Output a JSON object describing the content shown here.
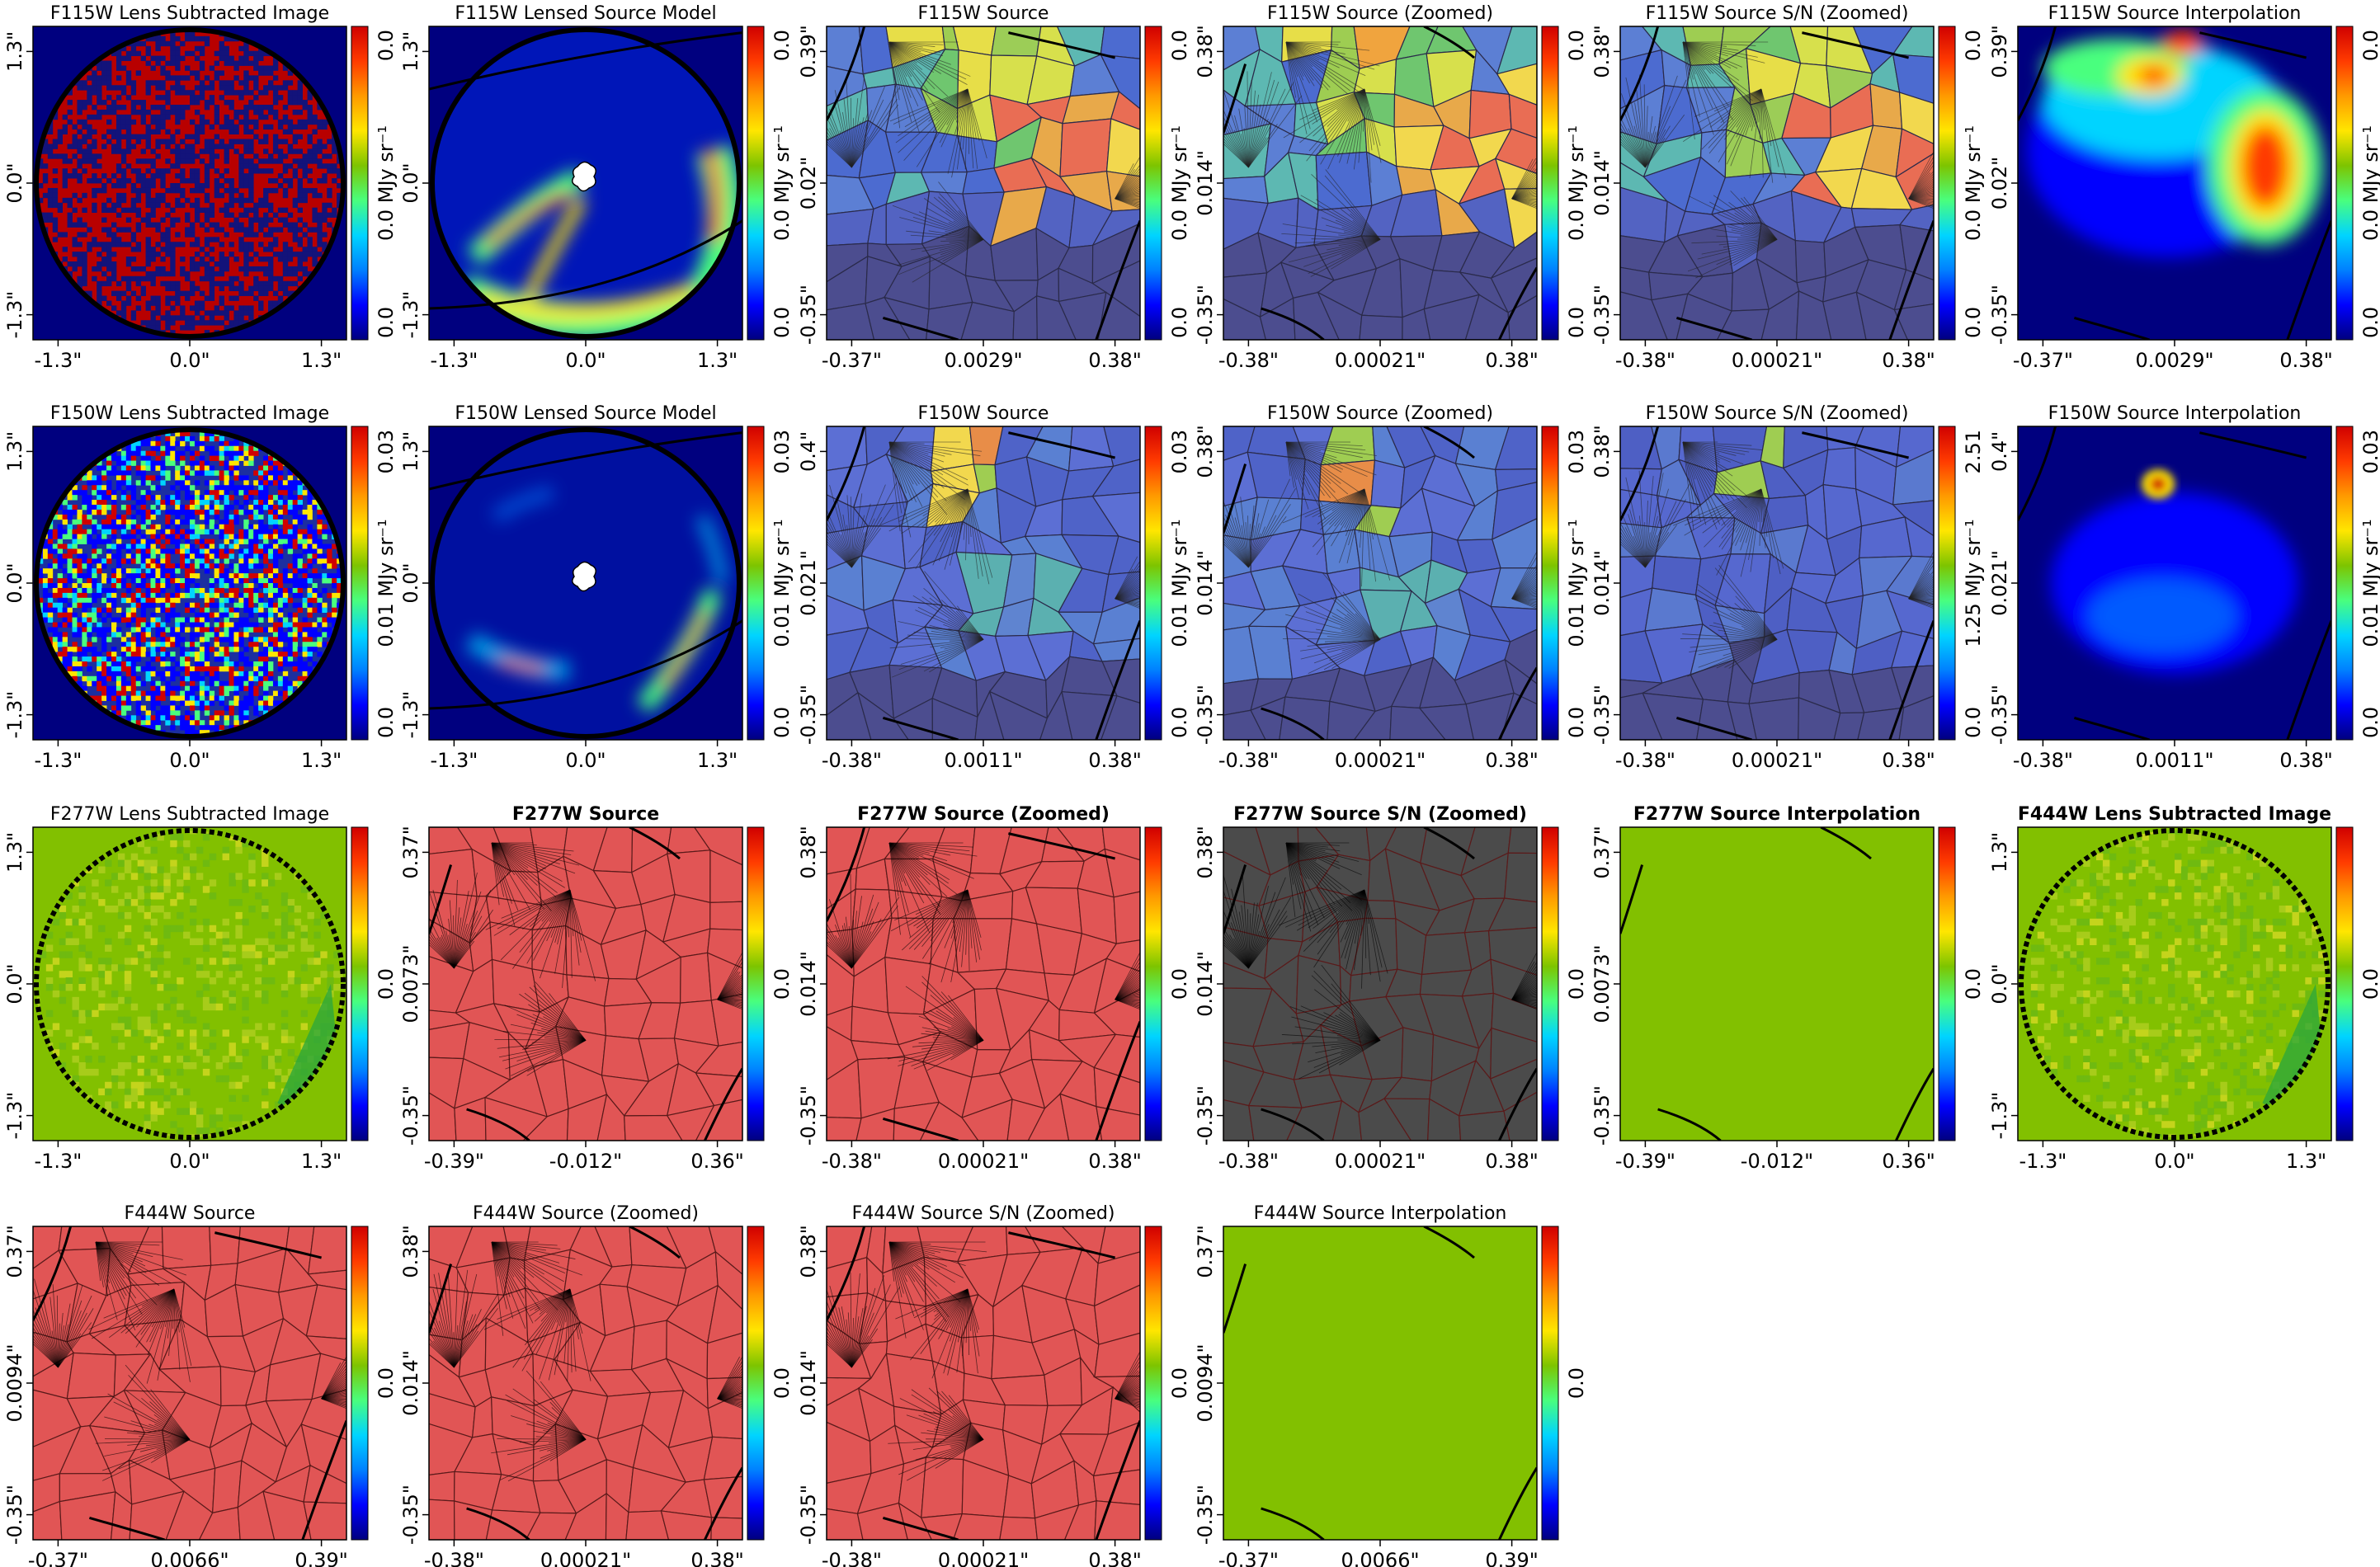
{
  "figure": {
    "layout": {
      "rows": 4,
      "cols": 6
    },
    "colors": {
      "cmap": [
        "#00007f",
        "#0000ff",
        "#0080ff",
        "#00d4ff",
        "#49ff7e",
        "#7dc400",
        "#ffe600",
        "#ff9a00",
        "#ff3b00",
        "#d00000"
      ],
      "recon_red": "#e15555",
      "flat_green": "#82c000",
      "sn_gray": "#4b4b4b",
      "mask_ring": "#000000"
    }
  },
  "chart_data": [
    {
      "type": "heatmap",
      "title": "F115W Lens Subtracted Image",
      "bold": false,
      "style": "noise_redblue",
      "xticks": [
        "-1.3\"",
        "0.0\"",
        "1.3\""
      ],
      "yticks": [
        "1.3\"",
        "0.0\"",
        "-1.3\""
      ],
      "cbar": {
        "ticks": [
          "0.0",
          "0.0"
        ],
        "label": "0.0 MJy sr⁻¹"
      }
    },
    {
      "type": "heatmap",
      "title": "F115W Lensed Source Model",
      "bold": false,
      "style": "lensed_arcs_a",
      "xticks": [
        "-1.3\"",
        "0.0\"",
        "1.3\""
      ],
      "yticks": [
        "1.3\"",
        "0.0\"",
        "-1.3\""
      ],
      "cbar": {
        "ticks": [
          "0.0",
          "0.0"
        ],
        "label": "0.0 MJy sr⁻¹"
      }
    },
    {
      "type": "heatmap",
      "title": "F115W Source",
      "bold": false,
      "style": "voronoi_color_a",
      "xticks": [
        "-0.37\"",
        "0.0029\"",
        "0.38\""
      ],
      "yticks": [
        "0.39\"",
        "0.02\"",
        "-0.35\""
      ],
      "cbar": {
        "ticks": [
          "0.0",
          "0.0"
        ],
        "label": "0.0 MJy sr⁻¹"
      }
    },
    {
      "type": "heatmap",
      "title": "F115W Source (Zoomed)",
      "bold": false,
      "style": "voronoi_color_a",
      "xticks": [
        "-0.38\"",
        "0.00021\"",
        "0.38\""
      ],
      "yticks": [
        "0.38\"",
        "0.014\"",
        "-0.35\""
      ],
      "cbar": {
        "ticks": [
          "0.0",
          "0.0"
        ],
        "label": "0.0 MJy sr⁻¹"
      }
    },
    {
      "type": "heatmap",
      "title": "F115W Source S/N (Zoomed)",
      "bold": false,
      "style": "voronoi_color_a",
      "xticks": [
        "-0.38\"",
        "0.00021\"",
        "0.38\""
      ],
      "yticks": [
        "0.38\"",
        "0.014\"",
        "-0.35\""
      ],
      "cbar": {
        "ticks": [
          "0.0",
          "0.0"
        ],
        "label": "0.0 MJy sr⁻¹"
      }
    },
    {
      "type": "heatmap",
      "title": "F115W Source Interpolation",
      "bold": false,
      "style": "interp_a",
      "xticks": [
        "-0.37\"",
        "0.0029\"",
        "0.38\""
      ],
      "yticks": [
        "0.39\"",
        "0.02\"",
        "-0.35\""
      ],
      "cbar": {
        "ticks": [
          "0.0",
          "0.0"
        ],
        "label": "0.0 MJy sr⁻¹"
      }
    },
    {
      "type": "heatmap",
      "title": "F150W Lens Subtracted Image",
      "bold": false,
      "style": "noise_multi",
      "xticks": [
        "-1.3\"",
        "0.0\"",
        "1.3\""
      ],
      "yticks": [
        "1.3\"",
        "0.0\"",
        "-1.3\""
      ],
      "cbar": {
        "ticks": [
          "0.0",
          "0.03"
        ],
        "label": "0.01 MJy sr⁻¹"
      }
    },
    {
      "type": "heatmap",
      "title": "F150W Lensed Source Model",
      "bold": false,
      "style": "lensed_arcs_b",
      "xticks": [
        "-1.3\"",
        "0.0\"",
        "1.3\""
      ],
      "yticks": [
        "1.3\"",
        "0.0\"",
        "-1.3\""
      ],
      "cbar": {
        "ticks": [
          "0.0",
          "0.03"
        ],
        "label": "0.01 MJy sr⁻¹"
      }
    },
    {
      "type": "heatmap",
      "title": "F150W Source",
      "bold": false,
      "style": "voronoi_color_b",
      "xticks": [
        "-0.38\"",
        "0.0011\"",
        "0.38\""
      ],
      "yticks": [
        "0.4\"",
        "0.021\"",
        "-0.35\""
      ],
      "cbar": {
        "ticks": [
          "0.0",
          "0.03"
        ],
        "label": "0.01 MJy sr⁻¹"
      }
    },
    {
      "type": "heatmap",
      "title": "F150W Source (Zoomed)",
      "bold": false,
      "style": "voronoi_color_b",
      "xticks": [
        "-0.38\"",
        "0.00021\"",
        "0.38\""
      ],
      "yticks": [
        "0.38\"",
        "0.014\"",
        "-0.35\""
      ],
      "cbar": {
        "ticks": [
          "0.0",
          "0.03"
        ],
        "label": "0.01 MJy sr⁻¹"
      }
    },
    {
      "type": "heatmap",
      "title": "F150W Source S/N (Zoomed)",
      "bold": false,
      "style": "voronoi_color_c",
      "xticks": [
        "-0.38\"",
        "0.00021\"",
        "0.38\""
      ],
      "yticks": [
        "0.38\"",
        "0.014\"",
        "-0.35\""
      ],
      "cbar": {
        "ticks": [
          "0.0",
          "2.51"
        ],
        "label": "1.25 MJy sr⁻¹"
      }
    },
    {
      "type": "heatmap",
      "title": "F150W Source Interpolation",
      "bold": false,
      "style": "interp_b",
      "xticks": [
        "-0.38\"",
        "0.0011\"",
        "0.38\""
      ],
      "yticks": [
        "0.4\"",
        "0.021\"",
        "-0.35\""
      ],
      "cbar": {
        "ticks": [
          "0.0",
          "0.03"
        ],
        "label": "0.01 MJy sr⁻¹"
      }
    },
    {
      "type": "heatmap",
      "title": "F277W Lens Subtracted Image",
      "bold": false,
      "style": "noise_green",
      "xticks": [
        "-1.3\"",
        "0.0\"",
        "1.3\""
      ],
      "yticks": [
        "1.3\"",
        "0.0\"",
        "-1.3\""
      ],
      "cbar": {
        "ticks": [],
        "label": "0.0"
      }
    },
    {
      "type": "heatmap",
      "title": "F277W Source",
      "bold": true,
      "style": "voronoi_red",
      "xticks": [
        "-0.39\"",
        "-0.012\"",
        "0.36\""
      ],
      "yticks": [
        "0.37\"",
        "0.0073\"",
        "-0.35\""
      ],
      "cbar": {
        "ticks": [],
        "label": "0.0"
      }
    },
    {
      "type": "heatmap",
      "title": "F277W Source (Zoomed)",
      "bold": true,
      "style": "voronoi_red",
      "xticks": [
        "-0.38\"",
        "0.00021\"",
        "0.38\""
      ],
      "yticks": [
        "0.38\"",
        "0.014\"",
        "-0.35\""
      ],
      "cbar": {
        "ticks": [],
        "label": "0.0"
      }
    },
    {
      "type": "heatmap",
      "title": "F277W Source S/N (Zoomed)",
      "bold": true,
      "style": "voronoi_gray",
      "xticks": [
        "-0.38\"",
        "0.00021\"",
        "0.38\""
      ],
      "yticks": [
        "0.38\"",
        "0.014\"",
        "-0.35\""
      ],
      "cbar": {
        "ticks": [],
        "label": "0.0"
      }
    },
    {
      "type": "heatmap",
      "title": "F277W Source Interpolation",
      "bold": true,
      "style": "flat_green",
      "xticks": [
        "-0.39\"",
        "-0.012\"",
        "0.36\""
      ],
      "yticks": [
        "0.37\"",
        "0.0073\"",
        "-0.35\""
      ],
      "cbar": {
        "ticks": [],
        "label": "0.0"
      }
    },
    {
      "type": "heatmap",
      "title": "F444W Lens Subtracted Image",
      "bold": true,
      "style": "noise_green",
      "xticks": [
        "-1.3\"",
        "0.0\"",
        "1.3\""
      ],
      "yticks": [
        "1.3\"",
        "0.0\"",
        "-1.3\""
      ],
      "cbar": {
        "ticks": [],
        "label": "0.0"
      }
    },
    {
      "type": "heatmap",
      "title": "F444W Source",
      "bold": false,
      "style": "voronoi_red",
      "xticks": [
        "-0.37\"",
        "0.0066\"",
        "0.39\""
      ],
      "yticks": [
        "0.37\"",
        "0.0094\"",
        "-0.35\""
      ],
      "cbar": {
        "ticks": [],
        "label": "0.0"
      }
    },
    {
      "type": "heatmap",
      "title": "F444W Source (Zoomed)",
      "bold": false,
      "style": "voronoi_red",
      "xticks": [
        "-0.38\"",
        "0.00021\"",
        "0.38\""
      ],
      "yticks": [
        "0.38\"",
        "0.014\"",
        "-0.35\""
      ],
      "cbar": {
        "ticks": [],
        "label": "0.0"
      }
    },
    {
      "type": "heatmap",
      "title": "F444W Source S/N (Zoomed)",
      "bold": false,
      "style": "voronoi_red",
      "xticks": [
        "-0.38\"",
        "0.00021\"",
        "0.38\""
      ],
      "yticks": [
        "0.38\"",
        "0.014\"",
        "-0.35\""
      ],
      "cbar": {
        "ticks": [],
        "label": "0.0"
      }
    },
    {
      "type": "heatmap",
      "title": "F444W Source Interpolation",
      "bold": false,
      "style": "flat_green",
      "xticks": [
        "-0.37\"",
        "0.0066\"",
        "0.39\""
      ],
      "yticks": [
        "0.37\"",
        "0.0094\"",
        "-0.35\""
      ],
      "cbar": {
        "ticks": [],
        "label": "0.0"
      }
    }
  ]
}
